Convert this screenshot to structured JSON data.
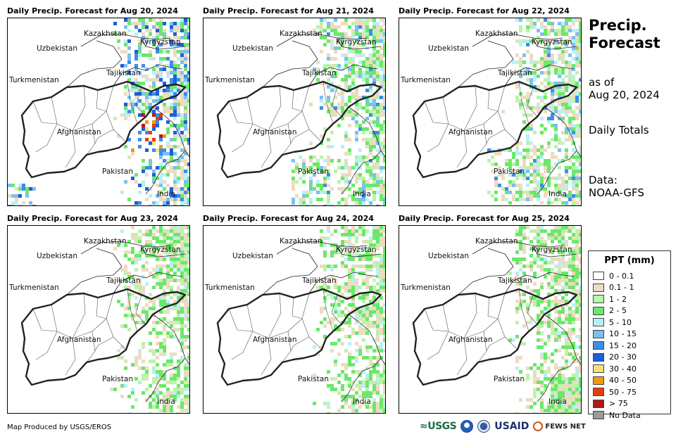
{
  "panels": [
    {
      "title": "Daily Precip. Forecast for Aug 20, 2024",
      "rain": "heavy"
    },
    {
      "title": "Daily Precip. Forecast for Aug 21, 2024",
      "rain": "moderate"
    },
    {
      "title": "Daily Precip. Forecast for Aug 22, 2024",
      "rain": "moderate"
    },
    {
      "title": "Daily Precip. Forecast for Aug 23, 2024",
      "rain": "light"
    },
    {
      "title": "Daily Precip. Forecast for Aug 24, 2024",
      "rain": "light"
    },
    {
      "title": "Daily Precip. Forecast for Aug 25, 2024",
      "rain": "light"
    }
  ],
  "map_labels": {
    "kazakhstan": "Kazakhstan",
    "uzbekistan": "Uzbekistan",
    "kyrgyzstan": "Kyrgyzstan",
    "tajikistan": "Tajikistan",
    "turkmenistan": "Turkmenistan",
    "afghanistan": "Afghanistan",
    "pakistan": "Pakistan",
    "india": "India"
  },
  "side": {
    "title_line1": "Precip.",
    "title_line2": "Forecast",
    "asof_line1": "as of",
    "asof_line2": "Aug 20, 2024",
    "totals": "Daily Totals",
    "data_line1": "Data:",
    "data_line2": "NOAA-GFS"
  },
  "legend": {
    "title": "PPT (mm)",
    "items": [
      {
        "label": "0 - 0.1",
        "color": "#ffffff"
      },
      {
        "label": "0.1 - 1",
        "color": "#ecdcc0"
      },
      {
        "label": "1 - 2",
        "color": "#b7f5a8"
      },
      {
        "label": "2 - 5",
        "color": "#6be86b"
      },
      {
        "label": "5 - 10",
        "color": "#b8f0f8"
      },
      {
        "label": "10 - 15",
        "color": "#7dbff0"
      },
      {
        "label": "15 - 20",
        "color": "#3c8ee8"
      },
      {
        "label": "20 - 30",
        "color": "#1e5fd8"
      },
      {
        "label": "30 - 40",
        "color": "#f8e078"
      },
      {
        "label": "40 - 50",
        "color": "#f49a10"
      },
      {
        "label": "50 - 75",
        "color": "#e83c10"
      },
      {
        "label": "> 75",
        "color": "#b01a1a"
      },
      {
        "label": "No Data",
        "color": "#9a9a9a"
      }
    ]
  },
  "footer": {
    "credit": "Map Produced by USGS/EROS",
    "logos": {
      "usgs": "≈USGS",
      "usaid": "USAID",
      "fews": "FEWS NET"
    }
  }
}
